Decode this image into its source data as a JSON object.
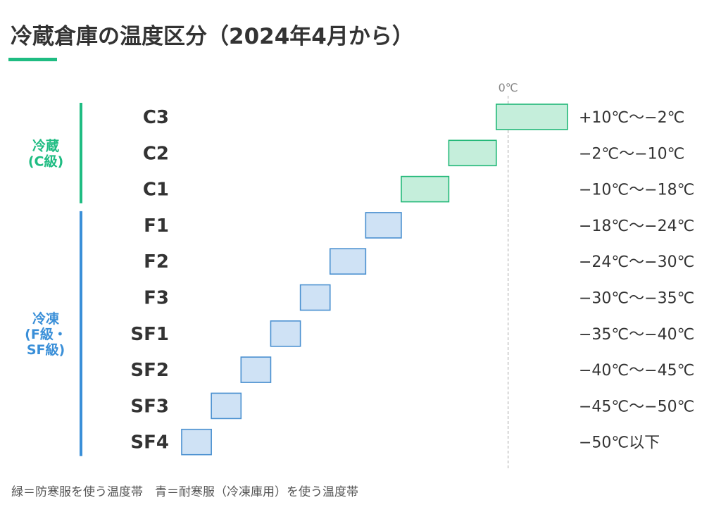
{
  "title": "冷蔵倉庫の温度区分（2024年4月から）",
  "footnote": "緑＝防寒服を使う温度帯　青＝耐寒服（冷凍庫用）を使う温度帯",
  "colors": {
    "green_fill": "#c5eedb",
    "green_stroke": "#22b878",
    "blue_fill": "#cfe2f5",
    "blue_stroke": "#4a90d0",
    "green_text": "#1fbc82",
    "blue_text": "#3a8fd8"
  },
  "groups": [
    {
      "label": [
        "冷蔵",
        "(C級)"
      ],
      "color": "green",
      "classes": [
        "C3",
        "C2",
        "C1"
      ]
    },
    {
      "label": [
        "冷凍",
        "(F級・",
        "SF級)"
      ],
      "color": "blue",
      "classes": [
        "F1",
        "F2",
        "F3",
        "SF1",
        "SF2",
        "SF3",
        "SF4"
      ]
    }
  ],
  "chart_data": {
    "type": "bar",
    "orientation": "horizontal-range",
    "reference_line": {
      "value": 0,
      "label": "0℃",
      "style": "dashed"
    },
    "categories": [
      "C3",
      "C2",
      "C1",
      "F1",
      "F2",
      "F3",
      "SF1",
      "SF2",
      "SF3",
      "SF4"
    ],
    "ranges": [
      {
        "class": "C3",
        "from": 10,
        "to": -2,
        "label": "+10℃〜−2℃",
        "group": "green"
      },
      {
        "class": "C2",
        "from": -2,
        "to": -10,
        "label": "−2℃〜−10℃",
        "group": "green"
      },
      {
        "class": "C1",
        "from": -10,
        "to": -18,
        "label": "−10℃〜−18℃",
        "group": "green"
      },
      {
        "class": "F1",
        "from": -18,
        "to": -24,
        "label": "−18℃〜−24℃",
        "group": "blue"
      },
      {
        "class": "F2",
        "from": -24,
        "to": -30,
        "label": "−24℃〜−30℃",
        "group": "blue"
      },
      {
        "class": "F3",
        "from": -30,
        "to": -35,
        "label": "−30℃〜−35℃",
        "group": "blue"
      },
      {
        "class": "SF1",
        "from": -35,
        "to": -40,
        "label": "−35℃〜−40℃",
        "group": "blue"
      },
      {
        "class": "SF2",
        "from": -40,
        "to": -45,
        "label": "−40℃〜−45℃",
        "group": "blue"
      },
      {
        "class": "SF3",
        "from": -45,
        "to": -50,
        "label": "−45℃〜−50℃",
        "group": "blue"
      },
      {
        "class": "SF4",
        "from": -50,
        "to": -55,
        "label": "−50℃以下",
        "group": "blue"
      }
    ],
    "xlim": [
      -55,
      10
    ],
    "grid": false,
    "legend": "none"
  }
}
